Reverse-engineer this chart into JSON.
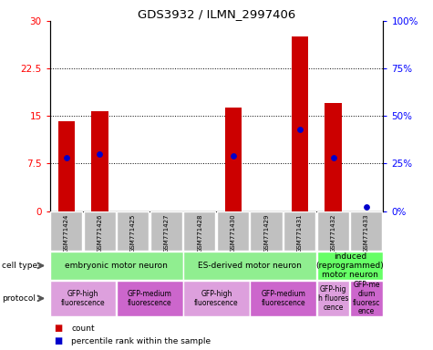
{
  "title": "GDS3932 / ILMN_2997406",
  "samples": [
    "GSM771424",
    "GSM771426",
    "GSM771425",
    "GSM771427",
    "GSM771428",
    "GSM771430",
    "GSM771429",
    "GSM771431",
    "GSM771432",
    "GSM771433"
  ],
  "counts": [
    14.2,
    15.8,
    0,
    0,
    0,
    16.3,
    0,
    27.5,
    17.0,
    0
  ],
  "percentile_ranks": [
    28,
    30,
    0,
    0,
    0,
    29,
    0,
    43,
    28,
    2
  ],
  "ylim_left": [
    0,
    30
  ],
  "ylim_right": [
    0,
    100
  ],
  "yticks_left": [
    0,
    7.5,
    15,
    22.5,
    30
  ],
  "yticks_right": [
    0,
    25,
    50,
    75,
    100
  ],
  "ytick_labels_left": [
    "0",
    "7.5",
    "15",
    "22.5",
    "30"
  ],
  "ytick_labels_right": [
    "0%",
    "25%",
    "50%",
    "75%",
    "100%"
  ],
  "bar_color": "#CC0000",
  "dot_color": "#0000CC",
  "bar_width": 0.5,
  "sample_bg_color": "#C0C0C0",
  "ct_data": [
    [
      0,
      3,
      "embryonic motor neuron",
      "#90EE90"
    ],
    [
      4,
      7,
      "ES-derived motor neuron",
      "#90EE90"
    ],
    [
      8,
      9,
      "induced\n(reprogrammed)\nmotor neuron",
      "#66FF66"
    ]
  ],
  "pr_data": [
    [
      0,
      1,
      "GFP-high\nfluorescence",
      "#DDA0DD"
    ],
    [
      2,
      3,
      "GFP-medium\nfluorescence",
      "#CC66CC"
    ],
    [
      4,
      5,
      "GFP-high\nfluorescence",
      "#DDA0DD"
    ],
    [
      6,
      7,
      "GFP-medium\nfluorescence",
      "#CC66CC"
    ],
    [
      8,
      8,
      "GFP-hig\nh fluores\ncence",
      "#DDA0DD"
    ],
    [
      9,
      9,
      "GFP-me\ndium\nfluoresc\nence",
      "#CC66CC"
    ]
  ]
}
